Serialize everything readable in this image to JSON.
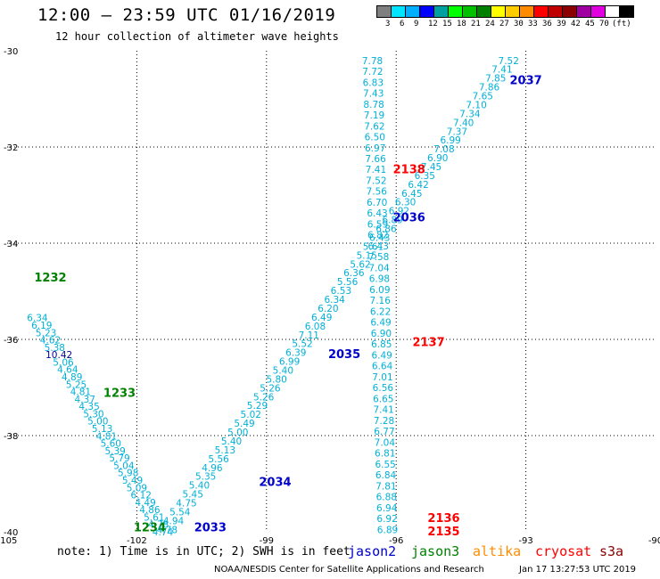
{
  "header": {
    "title": "12:00 — 23:59 UTC 01/16/2019",
    "subtitle": "12 hour collection of altimeter wave heights"
  },
  "colorbar": {
    "colors": [
      "#7f7f7f",
      "#00e5ff",
      "#00b0ff",
      "#0000ff",
      "#009fa0",
      "#00ff00",
      "#00c000",
      "#008000",
      "#ffff00",
      "#ffcc00",
      "#ff8c00",
      "#ff0000",
      "#c00000",
      "#8b0000",
      "#a000a0",
      "#e000e0",
      "#ffffff",
      "#000000"
    ],
    "labels": [
      "3",
      "6",
      "9",
      "12",
      "15",
      "18",
      "21",
      "24",
      "27",
      "30",
      "33",
      "36",
      "39",
      "42",
      "45",
      "70",
      "(ft)"
    ]
  },
  "footer": {
    "note": "note: 1) Time is in UTC; 2) SWH is in feet",
    "credit": "NOAA/NESDIS Center for Satellite Applications and Research",
    "timestamp": "Jan 17 13:27:53 UTC 2019"
  },
  "legend": [
    {
      "name": "jason2",
      "color": "#0000cc"
    },
    {
      "name": "jason3",
      "color": "#008000"
    },
    {
      "name": "altika",
      "color": "#ff8c00"
    },
    {
      "name": "cryosat",
      "color": "#ff0000"
    },
    {
      "name": "s3a",
      "color": "#8b0000"
    }
  ],
  "chart_data": {
    "type": "scatter",
    "xlim": [
      -105,
      -90
    ],
    "ylim": [
      -40,
      -30
    ],
    "xticks": [
      -105,
      -102,
      -99,
      -96,
      -93,
      -90
    ],
    "yticks": [
      -30,
      -32,
      -34,
      -36,
      -38,
      -40
    ],
    "xticklabels": [
      "-105",
      "-102",
      "-99",
      "-96",
      "-93",
      "-90"
    ],
    "yticklabels": [
      "-30",
      "-32",
      "-34",
      "-36",
      "-38",
      "-40"
    ],
    "grid": true,
    "value_color": "#00b0d8",
    "tracks": [
      {
        "name": "jason3",
        "start": [
          -104.3,
          -35.55
        ],
        "end": [
          -101.4,
          -40.0
        ],
        "values": [
          "6.34",
          "6.19",
          "5.23",
          "4.62",
          "5.38",
          "10.42",
          "5.06",
          "4.64",
          "4.89",
          "5.25",
          "4.81",
          "4.37",
          "4.35",
          "5.30",
          "5.00",
          "5.13",
          "4.81",
          "5.60",
          "5.39",
          "5.79",
          "5.04",
          "5.98",
          "5.49",
          "5.09",
          "6.12",
          "4.49",
          "4.86",
          "5.61",
          "4.78",
          "4.74"
        ],
        "colors": {
          "5": "#00008b"
        },
        "labels": [
          {
            "text": "1232",
            "x": -104.0,
            "y": -34.7,
            "color": "#008000"
          },
          {
            "text": "1233",
            "x": -102.4,
            "y": -37.1,
            "color": "#008000"
          },
          {
            "text": "1234",
            "x": -101.7,
            "y": -39.9,
            "color": "#008000"
          }
        ]
      },
      {
        "name": "jason2",
        "start": [
          -101.3,
          -39.95
        ],
        "end": [
          -93.4,
          -30.2
        ],
        "values": [
          "4.78",
          "4.94",
          "5.54",
          "4.75",
          "5.45",
          "5.40",
          "5.35",
          "4.96",
          "5.56",
          "5.13",
          "5.40",
          "5.00",
          "5.49",
          "5.02",
          "5.29",
          "5.26",
          "5.26",
          "5.80",
          "5.40",
          "6.99",
          "6.39",
          "5.52",
          "7.11",
          "6.08",
          "6.49",
          "6.20",
          "6.34",
          "6.53",
          "5.56",
          "6.36",
          "5.62",
          "5.15",
          "5.61",
          "6.43",
          "6.86",
          "6.89",
          "6.92",
          "6.30",
          "6.45",
          "6.42",
          "6.35",
          "7.45",
          "6.90",
          "7.08",
          "6.99",
          "7.37",
          "7.40",
          "7.34",
          "7.10",
          "7.65",
          "7.86",
          "7.85",
          "7.41",
          "7.52"
        ],
        "labels": [
          {
            "text": "2033",
            "x": -100.3,
            "y": -39.9,
            "color": "#0000cc"
          },
          {
            "text": "2034",
            "x": -98.8,
            "y": -38.95,
            "color": "#0000cc"
          },
          {
            "text": "2035",
            "x": -97.2,
            "y": -36.3,
            "color": "#0000cc"
          },
          {
            "text": "2036",
            "x": -95.7,
            "y": -33.45,
            "color": "#0000cc"
          },
          {
            "text": "2037",
            "x": -93.0,
            "y": -30.6,
            "color": "#0000cc"
          }
        ]
      },
      {
        "name": "cryosat",
        "start": [
          -96.55,
          -30.2
        ],
        "end": [
          -96.2,
          -39.95
        ],
        "values": [
          "7.78",
          "7.72",
          "6.83",
          "7.43",
          "8.78",
          "7.19",
          "7.62",
          "6.50",
          "6.97",
          "7.66",
          "7.41",
          "7.52",
          "7.56",
          "6.70",
          "6.43",
          "6.59",
          "6.82",
          "6.43",
          "7.58",
          "7.04",
          "6.98",
          "6.09",
          "7.16",
          "6.22",
          "6.49",
          "6.90",
          "6.85",
          "6.49",
          "6.64",
          "7.01",
          "6.56",
          "6.65",
          "7.41",
          "7.28",
          "6.77",
          "7.04",
          "6.81",
          "6.55",
          "6.84",
          "7.81",
          "6.88",
          "6.94",
          "6.92",
          "6.89"
        ],
        "labels": [
          {
            "text": "2138",
            "x": -95.7,
            "y": -32.45,
            "color": "#ff0000"
          },
          {
            "text": "2137",
            "x": -95.25,
            "y": -36.05,
            "color": "#ff0000"
          },
          {
            "text": "2136",
            "x": -94.9,
            "y": -39.7,
            "color": "#ff0000"
          },
          {
            "text": "2135",
            "x": -94.9,
            "y": -39.98,
            "color": "#ff0000"
          }
        ]
      }
    ]
  }
}
